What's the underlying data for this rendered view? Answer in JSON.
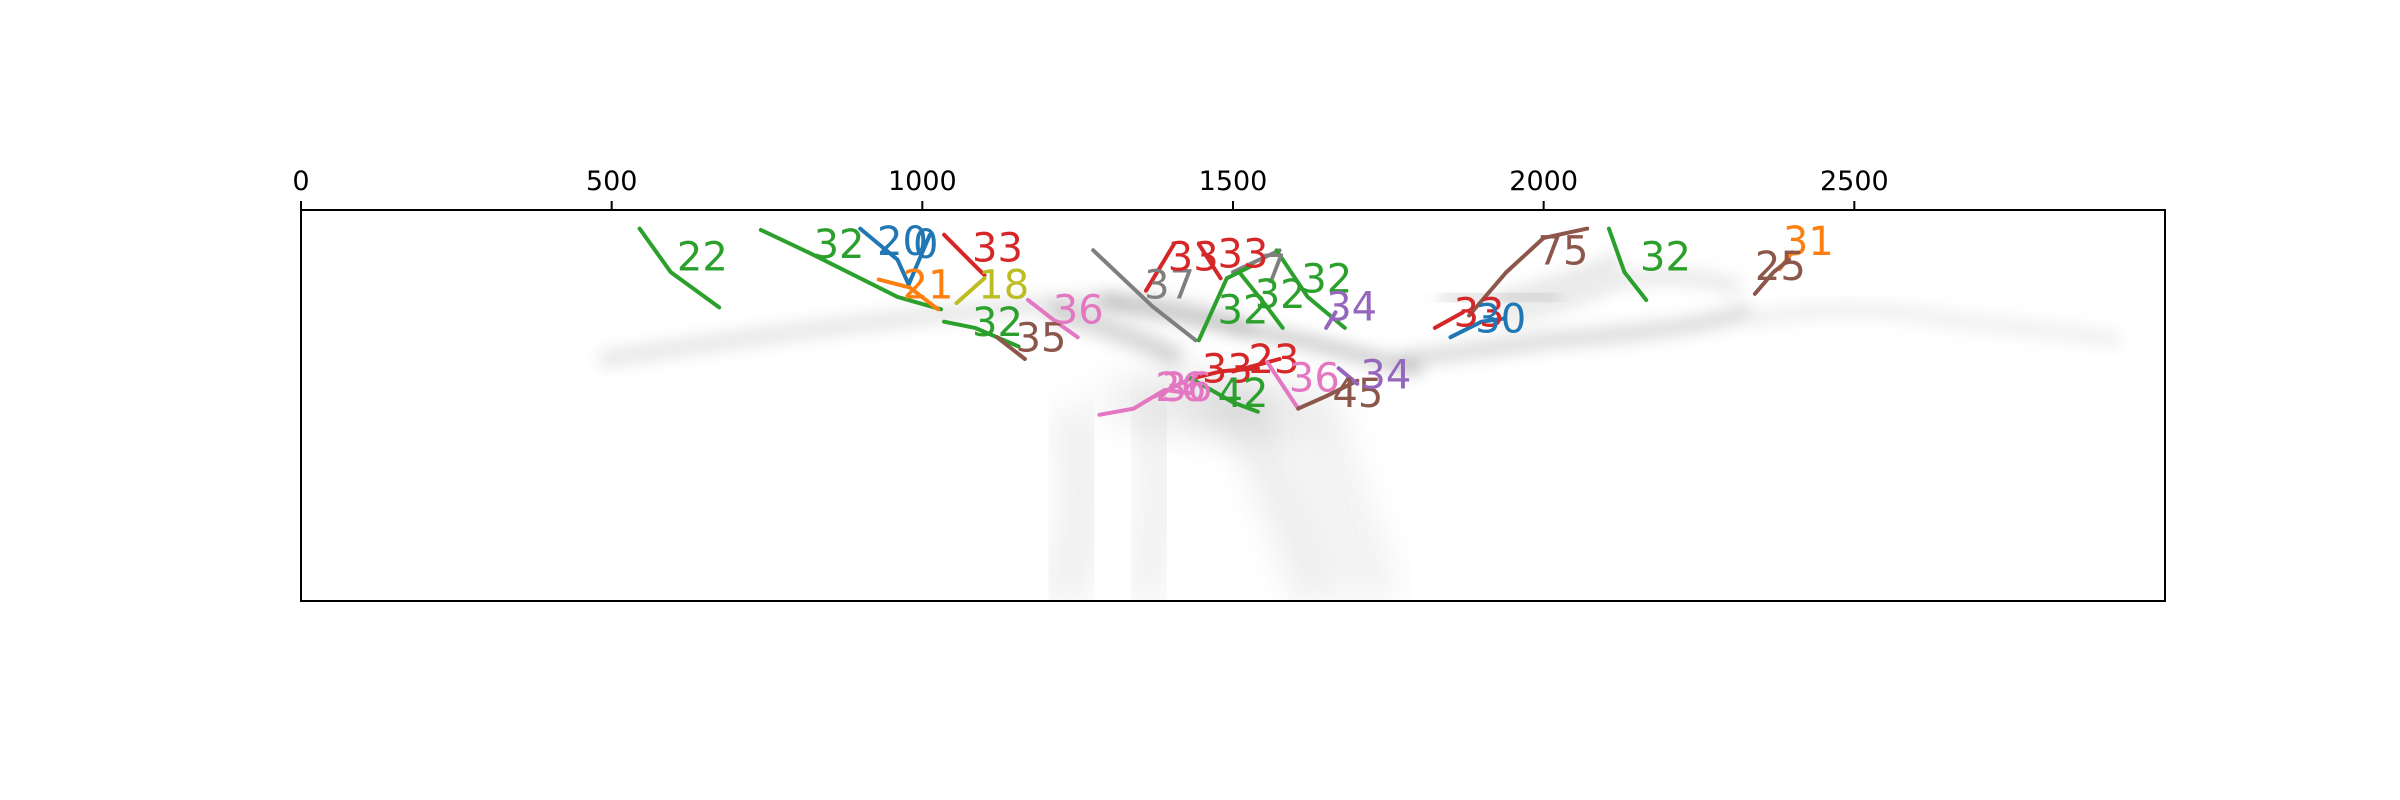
{
  "chart_data": {
    "type": "line",
    "title": "",
    "xlabel": "",
    "ylabel": "",
    "xlim": [
      0,
      3000
    ],
    "ylim": [
      0,
      630
    ],
    "y_inverted": true,
    "x_axis_position": "top",
    "y_ticks_visible": false,
    "grid": false,
    "legend": "none",
    "x_ticks": [
      "0",
      "500",
      "1000",
      "1500",
      "2000",
      "2500"
    ],
    "x_tick_values": [
      0,
      500,
      1000,
      1500,
      2000,
      2500
    ],
    "background": "grayscale density image",
    "series": [
      {
        "label": "22",
        "color": "#2ca02c",
        "points": [
          [
            545,
            30
          ],
          [
            595,
            100
          ],
          [
            673,
            157
          ]
        ],
        "label_at": [
          605,
          80
        ]
      },
      {
        "label": "32",
        "color": "#2ca02c",
        "points": [
          [
            740,
            32
          ],
          [
            820,
            70
          ],
          [
            960,
            140
          ],
          [
            1030,
            160
          ]
        ],
        "label_at": [
          825,
          60
        ]
      },
      {
        "label": "20",
        "color": "#1f77b4",
        "points": [
          [
            900,
            30
          ],
          [
            960,
            80
          ],
          [
            978,
            120
          ]
        ],
        "label_at": [
          927,
          55
        ]
      },
      {
        "label": "0",
        "color": "#1f77b4",
        "points": [
          [
            978,
            120
          ],
          [
            1012,
            40
          ]
        ],
        "label_at": [
          985,
          60
        ]
      },
      {
        "label": "21",
        "color": "#ff7f0e",
        "points": [
          [
            930,
            112
          ],
          [
            980,
            125
          ],
          [
            1025,
            160
          ]
        ],
        "label_at": [
          968,
          125
        ]
      },
      {
        "label": "33",
        "color": "#d62728",
        "points": [
          [
            1035,
            40
          ],
          [
            1080,
            85
          ],
          [
            1100,
            105
          ]
        ],
        "label_at": [
          1080,
          65
        ]
      },
      {
        "label": "18",
        "color": "#bcbd22",
        "points": [
          [
            1055,
            150
          ],
          [
            1100,
            110
          ]
        ],
        "label_at": [
          1090,
          125
        ]
      },
      {
        "label": "32",
        "color": "#2ca02c",
        "points": [
          [
            1035,
            180
          ],
          [
            1085,
            190
          ],
          [
            1155,
            220
          ]
        ],
        "label_at": [
          1080,
          185
        ]
      },
      {
        "label": "35",
        "color": "#8c564b",
        "points": [
          [
            1120,
            205
          ],
          [
            1165,
            240
          ]
        ],
        "label_at": [
          1150,
          210
        ]
      },
      {
        "label": "36",
        "color": "#e377c2",
        "points": [
          [
            1170,
            145
          ],
          [
            1215,
            180
          ],
          [
            1250,
            205
          ]
        ],
        "label_at": [
          1210,
          165
        ]
      },
      {
        "label": "37",
        "color": "#7f7f7f",
        "points": [
          [
            1275,
            65
          ],
          [
            1370,
            155
          ],
          [
            1440,
            210
          ]
        ],
        "label_at": [
          1357,
          125
        ]
      },
      {
        "label": "33",
        "color": "#d62728",
        "points": [
          [
            1360,
            130
          ],
          [
            1405,
            55
          ]
        ],
        "label_at": [
          1395,
          80
        ]
      },
      {
        "label": "33",
        "color": "#d62728",
        "points": [
          [
            1445,
            55
          ],
          [
            1480,
            110
          ]
        ],
        "label_at": [
          1475,
          75
        ]
      },
      {
        "label": "7",
        "color": "#7f7f7f",
        "points": [
          [
            1500,
            100
          ],
          [
            1575,
            65
          ]
        ],
        "label_at": [
          1545,
          100
        ]
      },
      {
        "label": "32",
        "color": "#2ca02c",
        "points": [
          [
            1445,
            210
          ],
          [
            1490,
            110
          ],
          [
            1530,
            90
          ]
        ],
        "label_at": [
          1475,
          165
        ]
      },
      {
        "label": "32",
        "color": "#2ca02c",
        "points": [
          [
            1510,
            100
          ],
          [
            1550,
            150
          ],
          [
            1580,
            190
          ]
        ],
        "label_at": [
          1535,
          140
        ]
      },
      {
        "label": "32",
        "color": "#2ca02c",
        "points": [
          [
            1570,
            65
          ],
          [
            1620,
            140
          ],
          [
            1680,
            190
          ]
        ],
        "label_at": [
          1610,
          115
        ]
      },
      {
        "label": "34",
        "color": "#9467bd",
        "points": [
          [
            1650,
            190
          ],
          [
            1665,
            165
          ]
        ],
        "label_at": [
          1650,
          160
        ]
      },
      {
        "label": "33",
        "color": "#d62728",
        "points": [
          [
            1440,
            270
          ],
          [
            1480,
            260
          ],
          [
            1540,
            255
          ]
        ],
        "label_at": [
          1450,
          260
        ]
      },
      {
        "label": "23",
        "color": "#d62728",
        "points": [
          [
            1500,
            260
          ],
          [
            1545,
            248
          ],
          [
            1575,
            240
          ]
        ],
        "label_at": [
          1525,
          245
        ]
      },
      {
        "label": "36",
        "color": "#e377c2",
        "points": [
          [
            1375,
            300
          ],
          [
            1415,
            280
          ],
          [
            1440,
            268
          ]
        ],
        "label_at": [
          1385,
          290
        ]
      },
      {
        "label": "42",
        "color": "#2ca02c",
        "points": [
          [
            1430,
            270
          ],
          [
            1500,
            310
          ],
          [
            1540,
            325
          ]
        ],
        "label_at": [
          1475,
          300
        ]
      },
      {
        "label": "26",
        "color": "#e377c2",
        "points": [
          [
            1285,
            330
          ],
          [
            1340,
            320
          ],
          [
            1390,
            290
          ],
          [
            1430,
            295
          ]
        ],
        "label_at": [
          1375,
          290
        ]
      },
      {
        "label": "36",
        "color": "#e377c2",
        "points": [
          [
            1555,
            245
          ],
          [
            1585,
            290
          ],
          [
            1605,
            320
          ]
        ],
        "label_at": [
          1590,
          275
        ]
      },
      {
        "label": "45",
        "color": "#8c564b",
        "points": [
          [
            1605,
            320
          ],
          [
            1650,
            300
          ],
          [
            1700,
            275
          ]
        ],
        "label_at": [
          1660,
          300
        ]
      },
      {
        "label": "34",
        "color": "#9467bd",
        "points": [
          [
            1670,
            255
          ],
          [
            1700,
            280
          ]
        ],
        "label_at": [
          1705,
          270
        ]
      },
      {
        "label": "33",
        "color": "#d62728",
        "points": [
          [
            1825,
            190
          ],
          [
            1870,
            165
          ]
        ],
        "label_at": [
          1855,
          170
        ]
      },
      {
        "label": "30",
        "color": "#1f77b4",
        "points": [
          [
            1850,
            205
          ],
          [
            1900,
            180
          ],
          [
            1935,
            175
          ]
        ],
        "label_at": [
          1890,
          180
        ]
      },
      {
        "label": "75",
        "color": "#8c564b",
        "points": [
          [
            1880,
            170
          ],
          [
            1940,
            100
          ],
          [
            2000,
            45
          ],
          [
            2070,
            30
          ]
        ],
        "label_at": [
          1990,
          70
        ]
      },
      {
        "label": "32",
        "color": "#2ca02c",
        "points": [
          [
            2105,
            30
          ],
          [
            2130,
            100
          ],
          [
            2165,
            145
          ]
        ],
        "label_at": [
          2155,
          80
        ]
      },
      {
        "label": "31",
        "color": "#ff7f0e",
        "points": [
          [
            2380,
            95
          ],
          [
            2400,
            68
          ]
        ],
        "label_at": [
          2385,
          55
        ]
      },
      {
        "label": "25",
        "color": "#8c564b",
        "points": [
          [
            2340,
            135
          ],
          [
            2370,
            100
          ],
          [
            2395,
            80
          ]
        ],
        "label_at": [
          2340,
          95
        ]
      }
    ]
  }
}
